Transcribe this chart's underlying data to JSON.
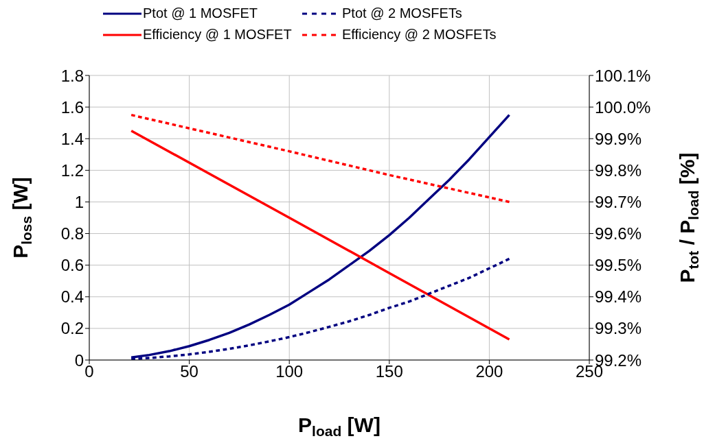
{
  "chart_data": {
    "type": "line",
    "xlabel": "P$_{load}$ [W]",
    "ylabel": "P$_{loss}$ [W]",
    "y2label": "P$_{tot}$ / P$_{load}$ [%]",
    "xlim": [
      0,
      250
    ],
    "xticks": [
      0,
      50,
      100,
      150,
      200,
      250
    ],
    "ylim": [
      0,
      1.8
    ],
    "yticks": [
      0,
      0.2,
      0.4,
      0.6,
      0.8,
      1,
      1.2,
      1.4,
      1.6,
      1.8
    ],
    "y2lim": [
      99.2,
      100.1
    ],
    "y2ticks": [
      {
        "value": 99.2,
        "label": "99.2%"
      },
      {
        "value": 99.3,
        "label": "99.3%"
      },
      {
        "value": 99.4,
        "label": "99.4%"
      },
      {
        "value": 99.5,
        "label": "99.5%"
      },
      {
        "value": 99.6,
        "label": "99.6%"
      },
      {
        "value": 99.7,
        "label": "99.7%"
      },
      {
        "value": 99.8,
        "label": "99.8%"
      },
      {
        "value": 99.9,
        "label": "99.9%"
      },
      {
        "value": 100.0,
        "label": "100.0%"
      },
      {
        "value": 100.1,
        "label": "100.1%"
      }
    ],
    "grid": true,
    "legend": "top",
    "marker": "none",
    "series": [
      {
        "name": "Ptot @ 1 MOSFET",
        "color": "#000080",
        "line_style": "solid",
        "x": [
          21,
          30,
          40,
          50,
          60,
          70,
          80,
          90,
          100,
          110,
          120,
          130,
          140,
          150,
          160,
          170,
          180,
          190,
          200,
          210
        ],
        "values": [
          0.016,
          0.032,
          0.056,
          0.088,
          0.127,
          0.172,
          0.225,
          0.285,
          0.35,
          0.43,
          0.51,
          0.6,
          0.69,
          0.79,
          0.9,
          1.02,
          1.14,
          1.27,
          1.41,
          1.55
        ]
      },
      {
        "name": "Efficiency @ 1 MOSFET",
        "color": "#ff0000",
        "line_style": "solid",
        "axis": "y2",
        "x": [
          21,
          100,
          150,
          210
        ],
        "values": [
          99.925,
          99.65,
          99.475,
          99.265
        ]
      },
      {
        "name": "Ptot @ 2 MOSFETs",
        "color": "#000080",
        "line_style": "dashed",
        "x": [
          21,
          30,
          40,
          50,
          60,
          70,
          80,
          90,
          100,
          110,
          120,
          130,
          140,
          150,
          160,
          170,
          180,
          190,
          200,
          210
        ],
        "values": [
          0.006,
          0.013,
          0.023,
          0.036,
          0.052,
          0.071,
          0.093,
          0.118,
          0.145,
          0.176,
          0.21,
          0.245,
          0.285,
          0.33,
          0.37,
          0.42,
          0.47,
          0.52,
          0.58,
          0.64
        ]
      },
      {
        "name": "Efficiency @ 2 MOSFETs",
        "color": "#ff0000",
        "line_style": "dashed",
        "axis": "y2",
        "x": [
          21,
          100,
          150,
          210
        ],
        "values": [
          99.975,
          99.86,
          99.785,
          99.7
        ]
      }
    ]
  }
}
